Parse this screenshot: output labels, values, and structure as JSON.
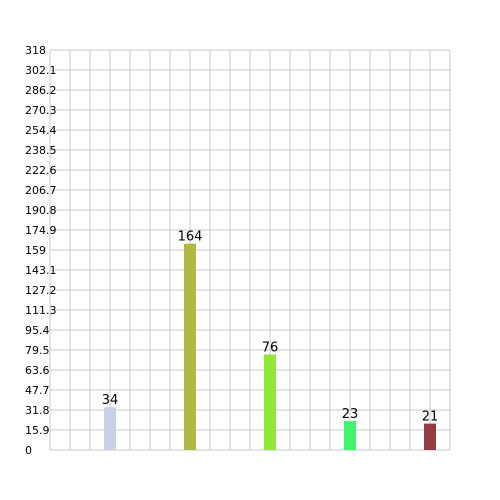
{
  "chart_data": {
    "type": "bar",
    "title": "",
    "xlabel": "",
    "ylabel": "",
    "ylim": [
      0,
      318
    ],
    "grid": true,
    "y_ticks": [
      "0",
      "15.9",
      "31.8",
      "47.7",
      "63.6",
      "79.5",
      "95.4",
      "111.3",
      "127.2",
      "143.1",
      "159",
      "174.9",
      "190.8",
      "206.7",
      "222.6",
      "238.5",
      "254.4",
      "270.3",
      "286.2",
      "302.1",
      "318"
    ],
    "bars": [
      {
        "slot": 3,
        "value": 34,
        "label": "34",
        "color": "#c8d0ea"
      },
      {
        "slot": 7,
        "value": 164,
        "label": "164",
        "color": "#b3b845"
      },
      {
        "slot": 11,
        "value": 76,
        "label": "76",
        "color": "#92e83a"
      },
      {
        "slot": 15,
        "value": 23,
        "label": "23",
        "color": "#3df66e"
      },
      {
        "slot": 19,
        "value": 21,
        "label": "21",
        "color": "#953c40"
      }
    ]
  }
}
